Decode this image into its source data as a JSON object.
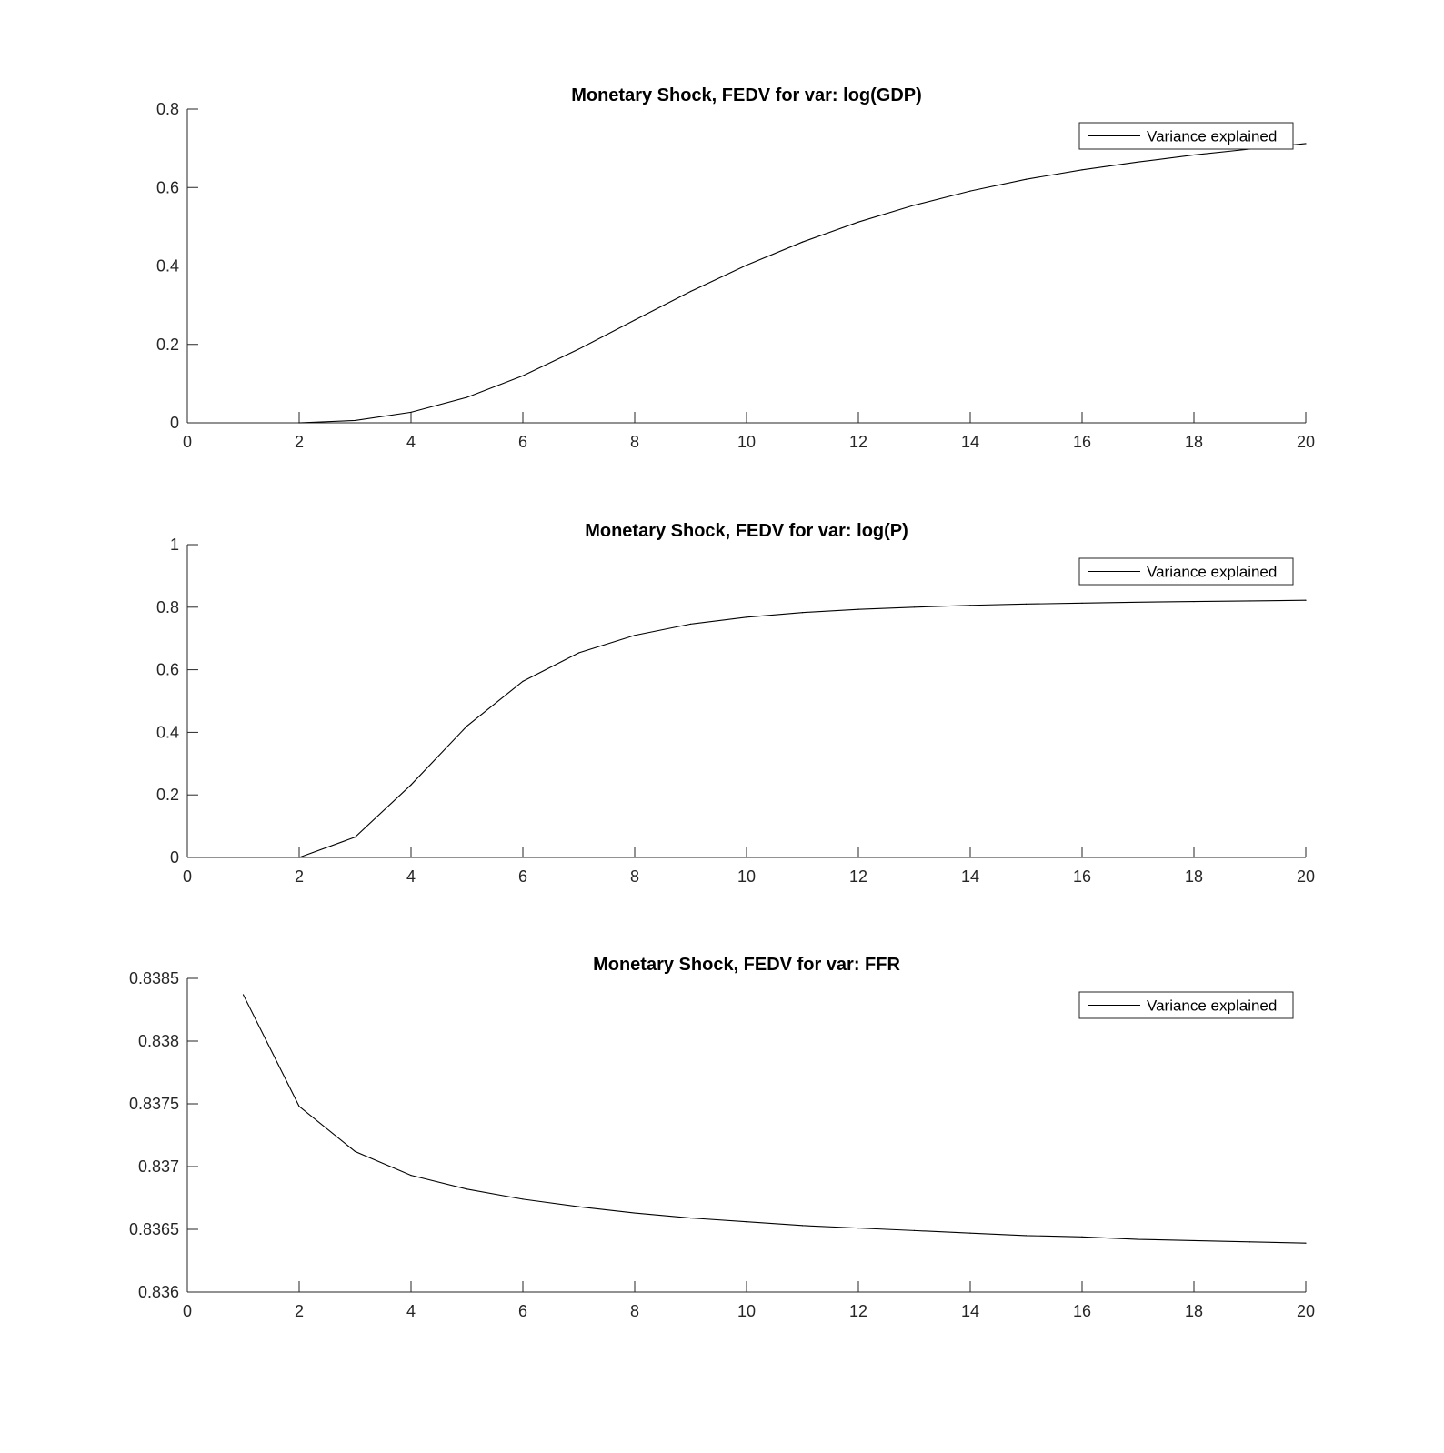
{
  "figure": {
    "background": "#ffffff",
    "line_color": "#000000",
    "axis_color": "#262626"
  },
  "chart_data": [
    {
      "type": "line",
      "title": "Monetary Shock, FEDV for var: log(GDP)",
      "xlabel": "",
      "ylabel": "",
      "xlim": [
        0,
        20
      ],
      "ylim": [
        0,
        0.8
      ],
      "xticks": [
        0,
        2,
        4,
        6,
        8,
        10,
        12,
        14,
        16,
        18,
        20
      ],
      "xtick_labels": [
        "0",
        "2",
        "4",
        "6",
        "8",
        "10",
        "12",
        "14",
        "16",
        "18",
        "20"
      ],
      "yticks": [
        0,
        0.2,
        0.4,
        0.6,
        0.8
      ],
      "ytick_labels": [
        "0",
        "0.2",
        "0.4",
        "0.6",
        "0.8"
      ],
      "grid": false,
      "legend_placement": "top-right",
      "series": [
        {
          "name": "Variance explained",
          "x": [
            2,
            3,
            4,
            5,
            6,
            7,
            8,
            9,
            10,
            11,
            12,
            13,
            14,
            15,
            16,
            17,
            18,
            19,
            20
          ],
          "y": [
            0.0,
            0.006,
            0.027,
            0.065,
            0.12,
            0.188,
            0.262,
            0.335,
            0.402,
            0.461,
            0.512,
            0.555,
            0.591,
            0.621,
            0.645,
            0.665,
            0.683,
            0.698,
            0.712
          ]
        }
      ]
    },
    {
      "type": "line",
      "title": "Monetary Shock, FEDV for var: log(P)",
      "xlabel": "",
      "ylabel": "",
      "xlim": [
        0,
        20
      ],
      "ylim": [
        0,
        1
      ],
      "xticks": [
        0,
        2,
        4,
        6,
        8,
        10,
        12,
        14,
        16,
        18,
        20
      ],
      "xtick_labels": [
        "0",
        "2",
        "4",
        "6",
        "8",
        "10",
        "12",
        "14",
        "16",
        "18",
        "20"
      ],
      "yticks": [
        0,
        0.2,
        0.4,
        0.6,
        0.8,
        1
      ],
      "ytick_labels": [
        "0",
        "0.2",
        "0.4",
        "0.6",
        "0.8",
        "1"
      ],
      "grid": false,
      "legend_placement": "top-right",
      "series": [
        {
          "name": "Variance explained",
          "x": [
            2,
            3,
            4,
            5,
            6,
            7,
            8,
            9,
            10,
            11,
            12,
            13,
            14,
            15,
            16,
            17,
            18,
            19,
            20
          ],
          "y": [
            0.0,
            0.065,
            0.232,
            0.42,
            0.563,
            0.654,
            0.71,
            0.746,
            0.768,
            0.783,
            0.793,
            0.8,
            0.806,
            0.81,
            0.813,
            0.816,
            0.818,
            0.82,
            0.822
          ]
        }
      ]
    },
    {
      "type": "line",
      "title": "Monetary Shock, FEDV for var: FFR",
      "xlabel": "",
      "ylabel": "",
      "xlim": [
        0,
        20
      ],
      "ylim": [
        0.836,
        0.8385
      ],
      "xticks": [
        0,
        2,
        4,
        6,
        8,
        10,
        12,
        14,
        16,
        18,
        20
      ],
      "xtick_labels": [
        "0",
        "2",
        "4",
        "6",
        "8",
        "10",
        "12",
        "14",
        "16",
        "18",
        "20"
      ],
      "yticks": [
        0.836,
        0.8365,
        0.837,
        0.8375,
        0.838,
        0.8385
      ],
      "ytick_labels": [
        "0.836",
        "0.8365",
        "0.837",
        "0.8375",
        "0.838",
        "0.8385"
      ],
      "grid": false,
      "legend_placement": "top-right",
      "series": [
        {
          "name": "Variance explained",
          "x": [
            1,
            2,
            3,
            4,
            5,
            6,
            7,
            8,
            9,
            10,
            11,
            12,
            13,
            14,
            15,
            16,
            17,
            18,
            19,
            20
          ],
          "y": [
            0.83837,
            0.83748,
            0.83712,
            0.83693,
            0.83682,
            0.83674,
            0.83668,
            0.83663,
            0.83659,
            0.83656,
            0.83653,
            0.83651,
            0.83649,
            0.83647,
            0.83645,
            0.83644,
            0.83642,
            0.83641,
            0.8364,
            0.83639
          ]
        }
      ]
    }
  ]
}
